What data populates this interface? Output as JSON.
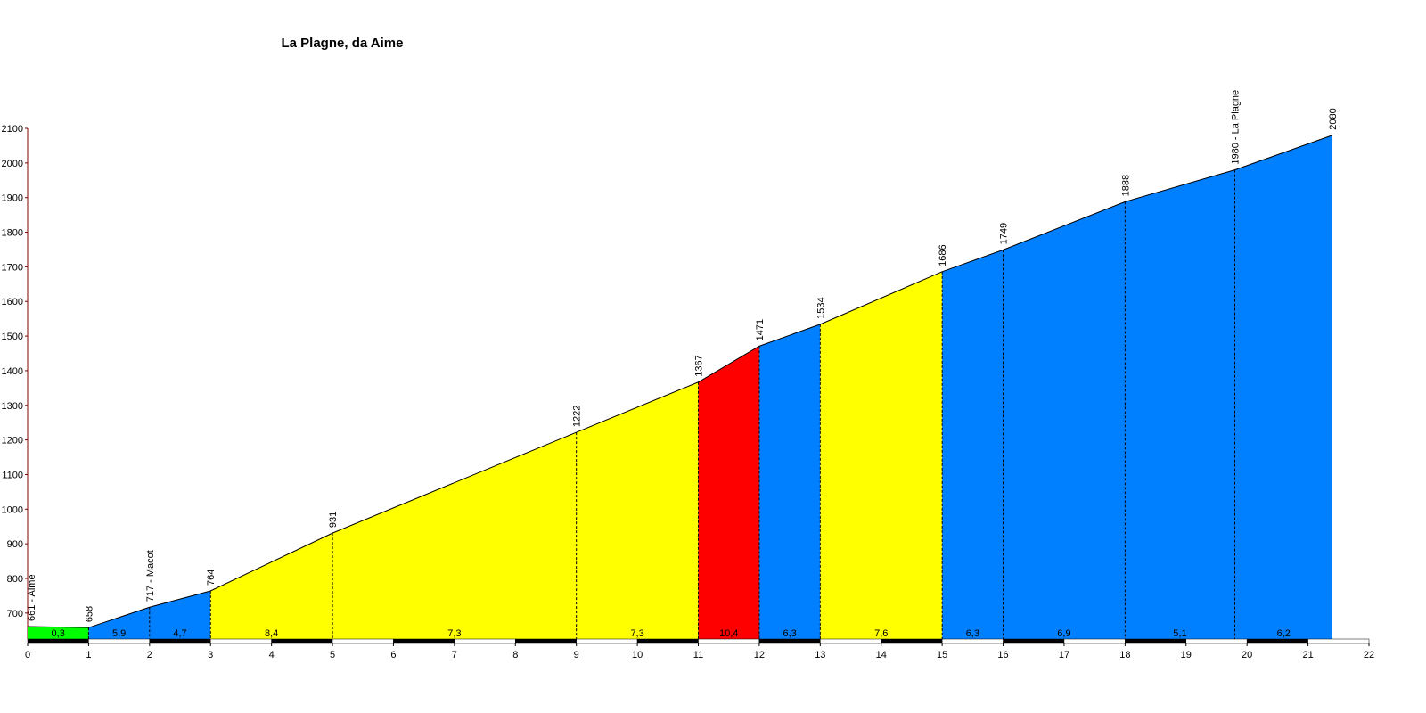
{
  "chart_data": {
    "type": "elevation-profile",
    "title": "La Plagne, da Aime",
    "x": [
      0,
      1,
      2,
      3,
      5,
      9,
      11,
      12,
      13,
      15,
      16,
      18,
      19.8,
      21.4
    ],
    "values": [
      661,
      658,
      717,
      764,
      931,
      1222,
      1367,
      1471,
      1534,
      1686,
      1749,
      1888,
      1980,
      2080
    ],
    "value_labels": [
      "661 - Aime",
      "658",
      "717 - Macot",
      "764",
      "931",
      "1222",
      "1367",
      "1471",
      "1534",
      "1686",
      "1749",
      "1888",
      "1980 - La Plagne",
      "2080"
    ],
    "segments": [
      {
        "grade": "0,3",
        "color": "#00ff00"
      },
      {
        "grade": "5,9",
        "color": "#0080ff"
      },
      {
        "grade": "4,7",
        "color": "#0080ff"
      },
      {
        "grade": "8,4",
        "color": "#ffff00"
      },
      {
        "grade": "7,3",
        "color": "#ffff00"
      },
      {
        "grade": "7,3",
        "color": "#ffff00"
      },
      {
        "grade": "10,4",
        "color": "#ff0000"
      },
      {
        "grade": "6,3",
        "color": "#0080ff"
      },
      {
        "grade": "7,6",
        "color": "#ffff00"
      },
      {
        "grade": "6,3",
        "color": "#0080ff"
      },
      {
        "grade": "6,9",
        "color": "#0080ff"
      },
      {
        "grade": "5,1",
        "color": "#0080ff"
      },
      {
        "grade": "6,2",
        "color": "#0080ff"
      }
    ],
    "xlim": [
      0,
      22
    ],
    "xticks": [
      0,
      1,
      2,
      3,
      4,
      5,
      6,
      7,
      8,
      9,
      10,
      11,
      12,
      13,
      14,
      15,
      16,
      17,
      18,
      19,
      20,
      21,
      22
    ],
    "ylim": [
      625,
      2100
    ],
    "yticks": [
      700,
      800,
      900,
      1000,
      1100,
      1200,
      1300,
      1400,
      1500,
      1600,
      1700,
      1800,
      1900,
      2000,
      2100
    ]
  }
}
